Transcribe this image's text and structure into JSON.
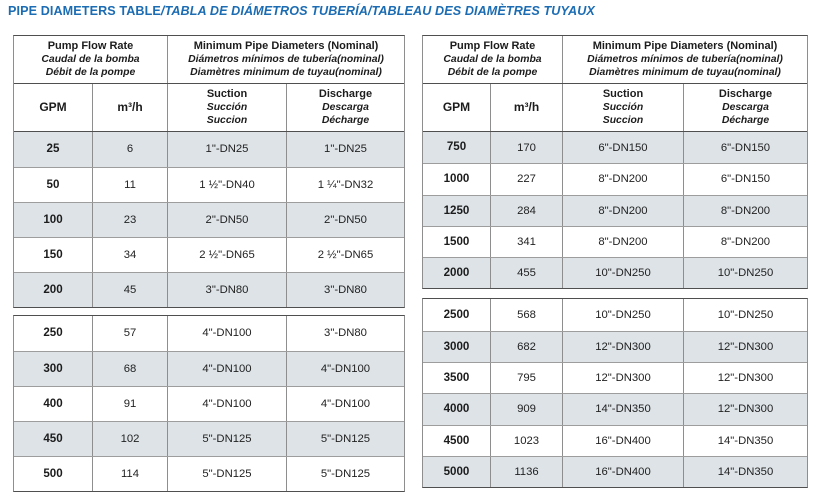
{
  "title": {
    "normal": "PIPE DIAMETERS TABLE",
    "italic": "/TABLA DE DIÁMETROS TUBERÍA/TABLEAU DES DIAMÈTRES TUYAUX"
  },
  "colors": {
    "title_blue": "#1b6cb3",
    "row_shade": "#dde3e7"
  },
  "header": {
    "flow_lines": [
      "Pump Flow Rate",
      "Caudal de la bomba",
      "Débit de la pompe"
    ],
    "diam_lines": [
      "Minimum Pipe Diameters (Nominal)",
      "Diámetros mínimos de tubería(nominal)",
      "Diamètres minimum de tuyau(nominal)"
    ],
    "col_gpm": "GPM",
    "col_m3h": "m³/h",
    "suction_lines": [
      "Suction",
      "Succión",
      "Succion"
    ],
    "discharge_lines": [
      "Discharge",
      "Descarga",
      "Décharge"
    ]
  },
  "tables": [
    {
      "id": "left",
      "blocks": [
        [
          {
            "gpm": "25",
            "m3h": "6",
            "suction": "1\"-DN25",
            "discharge": "1\"-DN25",
            "shaded": true
          },
          {
            "gpm": "50",
            "m3h": "11",
            "suction": "1 ½\"-DN40",
            "discharge": "1 ¼\"-DN32",
            "shaded": false
          },
          {
            "gpm": "100",
            "m3h": "23",
            "suction": "2\"-DN50",
            "discharge": "2\"-DN50",
            "shaded": true
          },
          {
            "gpm": "150",
            "m3h": "34",
            "suction": "2 ½\"-DN65",
            "discharge": "2 ½\"-DN65",
            "shaded": false
          },
          {
            "gpm": "200",
            "m3h": "45",
            "suction": "3\"-DN80",
            "discharge": "3\"-DN80",
            "shaded": true
          }
        ],
        [
          {
            "gpm": "250",
            "m3h": "57",
            "suction": "4\"-DN100",
            "discharge": "3\"-DN80",
            "shaded": false
          },
          {
            "gpm": "300",
            "m3h": "68",
            "suction": "4\"-DN100",
            "discharge": "4\"-DN100",
            "shaded": true
          },
          {
            "gpm": "400",
            "m3h": "91",
            "suction": "4\"-DN100",
            "discharge": "4\"-DN100",
            "shaded": false
          },
          {
            "gpm": "450",
            "m3h": "102",
            "suction": "5\"-DN125",
            "discharge": "5\"-DN125",
            "shaded": true
          },
          {
            "gpm": "500",
            "m3h": "114",
            "suction": "5\"-DN125",
            "discharge": "5\"-DN125",
            "shaded": false
          }
        ]
      ]
    },
    {
      "id": "right",
      "blocks": [
        [
          {
            "gpm": "750",
            "m3h": "170",
            "suction": "6\"-DN150",
            "discharge": "6\"-DN150",
            "shaded": true
          },
          {
            "gpm": "1000",
            "m3h": "227",
            "suction": "8\"-DN200",
            "discharge": "6\"-DN150",
            "shaded": false
          },
          {
            "gpm": "1250",
            "m3h": "284",
            "suction": "8\"-DN200",
            "discharge": "8\"-DN200",
            "shaded": true
          },
          {
            "gpm": "1500",
            "m3h": "341",
            "suction": "8\"-DN200",
            "discharge": "8\"-DN200",
            "shaded": false
          },
          {
            "gpm": "2000",
            "m3h": "455",
            "suction": "10\"-DN250",
            "discharge": "10\"-DN250",
            "shaded": true
          }
        ],
        [
          {
            "gpm": "2500",
            "m3h": "568",
            "suction": "10\"-DN250",
            "discharge": "10\"-DN250",
            "shaded": false
          },
          {
            "gpm": "3000",
            "m3h": "682",
            "suction": "12\"-DN300",
            "discharge": "12\"-DN300",
            "shaded": true
          },
          {
            "gpm": "3500",
            "m3h": "795",
            "suction": "12\"-DN300",
            "discharge": "12\"-DN300",
            "shaded": false
          },
          {
            "gpm": "4000",
            "m3h": "909",
            "suction": "14\"-DN350",
            "discharge": "12\"-DN300",
            "shaded": true
          },
          {
            "gpm": "4500",
            "m3h": "1023",
            "suction": "16\"-DN400",
            "discharge": "14\"-DN350",
            "shaded": false
          },
          {
            "gpm": "5000",
            "m3h": "1136",
            "suction": "16\"-DN400",
            "discharge": "14\"-DN350",
            "shaded": true
          }
        ]
      ]
    }
  ]
}
